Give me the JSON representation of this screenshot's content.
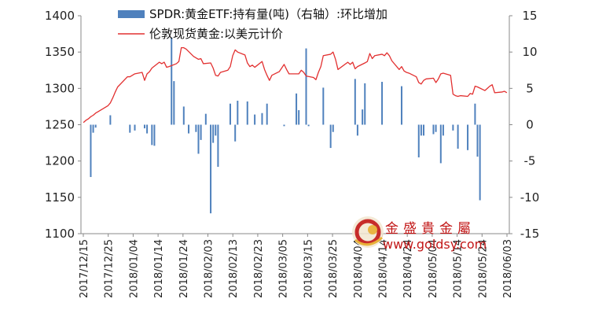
{
  "chart_data": {
    "type": "bar+line",
    "title": "",
    "legend": {
      "placement": "top-center",
      "entries": [
        {
          "name": "SPDR:黄金ETF:持有量(吨)（右轴）:环比增加",
          "kind": "bar",
          "color": "#4f81bd"
        },
        {
          "name": "伦敦现货黄金:以美元计价",
          "kind": "line",
          "color": "#e23030"
        }
      ]
    },
    "left_axis": {
      "min": 1100,
      "max": 1400,
      "step": 50,
      "ticks": [
        "1400",
        "1350",
        "1300",
        "1250",
        "1200",
        "1150",
        "1100"
      ]
    },
    "right_axis": {
      "min": -15,
      "max": 15,
      "step": 5,
      "ticks": [
        "15",
        "10",
        "5",
        "0",
        "-5",
        "-10",
        "-15"
      ]
    },
    "x_tick_labels": [
      "2017/12/15",
      "2017/12/25",
      "2018/01/04",
      "2018/01/14",
      "2018/01/24",
      "2018/02/03",
      "2018/02/13",
      "2018/02/23",
      "2018/03/05",
      "2018/03/15",
      "2018/03/25",
      "2018/04/04",
      "2018/04/14",
      "2018/04/24",
      "2018/05/04",
      "2018/05/14",
      "2018/05/24",
      "2018/06/03"
    ],
    "series": [
      {
        "name": "SPDR:黄金ETF:持有量(吨)（右轴）:环比增加",
        "type": "bar",
        "axis": "right",
        "color": "#4f81bd",
        "points": [
          [
            "2017/12/18",
            -7.2
          ],
          [
            "2017/12/19",
            -1.1
          ],
          [
            "2017/12/20",
            -0.4
          ],
          [
            "2017/12/26",
            1.3
          ],
          [
            "2018/01/03",
            -1.1
          ],
          [
            "2018/01/05",
            -0.8
          ],
          [
            "2018/01/09",
            -0.5
          ],
          [
            "2018/01/10",
            -1.2
          ],
          [
            "2018/01/12",
            -2.8
          ],
          [
            "2018/01/13",
            -2.9
          ],
          [
            "2018/01/20",
            12.0
          ],
          [
            "2018/01/21",
            6.0
          ],
          [
            "2018/01/25",
            2.5
          ],
          [
            "2018/01/27",
            -1.2
          ],
          [
            "2018/01/30",
            -1.0
          ],
          [
            "2018/01/31",
            -4.0
          ],
          [
            "2018/02/01",
            -2.1
          ],
          [
            "2018/02/03",
            1.5
          ],
          [
            "2018/02/05",
            -12.2
          ],
          [
            "2018/02/06",
            -2.5
          ],
          [
            "2018/02/07",
            -1.5
          ],
          [
            "2018/02/08",
            -5.8
          ],
          [
            "2018/02/13",
            2.9
          ],
          [
            "2018/02/15",
            -2.3
          ],
          [
            "2018/02/16",
            3.3
          ],
          [
            "2018/02/20",
            3.2
          ],
          [
            "2018/02/23",
            1.4
          ],
          [
            "2018/02/26",
            1.6
          ],
          [
            "2018/02/28",
            2.9
          ],
          [
            "2018/03/07",
            -0.2
          ],
          [
            "2018/03/12",
            4.3
          ],
          [
            "2018/03/13",
            2.0
          ],
          [
            "2018/03/16",
            10.5
          ],
          [
            "2018/03/17",
            -0.2
          ],
          [
            "2018/03/23",
            5.1
          ],
          [
            "2018/03/26",
            -3.2
          ],
          [
            "2018/03/27",
            -1.0
          ],
          [
            "2018/04/05",
            6.3
          ],
          [
            "2018/04/06",
            -1.5
          ],
          [
            "2018/04/08",
            2.1
          ],
          [
            "2018/04/09",
            5.7
          ],
          [
            "2018/04/16",
            5.9
          ],
          [
            "2018/04/24",
            5.3
          ],
          [
            "2018/05/01",
            -4.5
          ],
          [
            "2018/05/02",
            -1.5
          ],
          [
            "2018/05/03",
            -1.5
          ],
          [
            "2018/05/07",
            -1.3
          ],
          [
            "2018/05/08",
            -1.0
          ],
          [
            "2018/05/10",
            -5.3
          ],
          [
            "2018/05/11",
            -1.5
          ],
          [
            "2018/05/15",
            -0.8
          ],
          [
            "2018/05/17",
            -3.3
          ],
          [
            "2018/05/21",
            -3.5
          ],
          [
            "2018/05/24",
            2.9
          ],
          [
            "2018/05/25",
            -4.4
          ],
          [
            "2018/05/26",
            -10.4
          ]
        ]
      },
      {
        "name": "伦敦现货黄金:以美元计价",
        "type": "line",
        "axis": "left",
        "color": "#e23030",
        "points": [
          [
            "2017/12/15",
            1253
          ],
          [
            "2017/12/16",
            1256
          ],
          [
            "2017/12/17",
            1258
          ],
          [
            "2017/12/18",
            1261
          ],
          [
            "2017/12/19",
            1263
          ],
          [
            "2017/12/20",
            1266
          ],
          [
            "2017/12/21",
            1268
          ],
          [
            "2017/12/22",
            1270
          ],
          [
            "2017/12/25",
            1276
          ],
          [
            "2017/12/26",
            1280
          ],
          [
            "2017/12/27",
            1287
          ],
          [
            "2017/12/28",
            1295
          ],
          [
            "2017/12/29",
            1302
          ],
          [
            "2018/01/02",
            1316
          ],
          [
            "2018/01/03",
            1316
          ],
          [
            "2018/01/04",
            1318
          ],
          [
            "2018/01/05",
            1320
          ],
          [
            "2018/01/08",
            1322
          ],
          [
            "2018/01/09",
            1311
          ],
          [
            "2018/01/10",
            1320
          ],
          [
            "2018/01/11",
            1323
          ],
          [
            "2018/01/12",
            1328
          ],
          [
            "2018/01/15",
            1336
          ],
          [
            "2018/01/16",
            1334
          ],
          [
            "2018/01/17",
            1336
          ],
          [
            "2018/01/18",
            1329
          ],
          [
            "2018/01/19",
            1330
          ],
          [
            "2018/01/22",
            1334
          ],
          [
            "2018/01/23",
            1337
          ],
          [
            "2018/01/24",
            1356
          ],
          [
            "2018/01/25",
            1356
          ],
          [
            "2018/01/26",
            1354
          ],
          [
            "2018/01/29",
            1344
          ],
          [
            "2018/01/30",
            1342
          ],
          [
            "2018/01/31",
            1340
          ],
          [
            "2018/02/01",
            1341
          ],
          [
            "2018/02/02",
            1334
          ],
          [
            "2018/02/05",
            1335
          ],
          [
            "2018/02/06",
            1328
          ],
          [
            "2018/02/07",
            1318
          ],
          [
            "2018/02/08",
            1317
          ],
          [
            "2018/02/09",
            1322
          ],
          [
            "2018/02/12",
            1325
          ],
          [
            "2018/02/13",
            1330
          ],
          [
            "2018/02/14",
            1345
          ],
          [
            "2018/02/15",
            1353
          ],
          [
            "2018/02/16",
            1350
          ],
          [
            "2018/02/19",
            1346
          ],
          [
            "2018/02/20",
            1335
          ],
          [
            "2018/02/21",
            1330
          ],
          [
            "2018/02/22",
            1332
          ],
          [
            "2018/02/23",
            1329
          ],
          [
            "2018/02/26",
            1337
          ],
          [
            "2018/02/27",
            1326
          ],
          [
            "2018/02/28",
            1318
          ],
          [
            "2018/03/01",
            1311
          ],
          [
            "2018/03/02",
            1318
          ],
          [
            "2018/03/05",
            1323
          ],
          [
            "2018/03/06",
            1328
          ],
          [
            "2018/03/07",
            1333
          ],
          [
            "2018/03/08",
            1326
          ],
          [
            "2018/03/09",
            1320
          ],
          [
            "2018/03/12",
            1320
          ],
          [
            "2018/03/13",
            1320
          ],
          [
            "2018/03/14",
            1325
          ],
          [
            "2018/03/15",
            1322
          ],
          [
            "2018/03/16",
            1317
          ],
          [
            "2018/03/19",
            1315
          ],
          [
            "2018/03/20",
            1312
          ],
          [
            "2018/03/21",
            1322
          ],
          [
            "2018/03/22",
            1330
          ],
          [
            "2018/03/23",
            1345
          ],
          [
            "2018/03/26",
            1347
          ],
          [
            "2018/03/27",
            1350
          ],
          [
            "2018/03/28",
            1340
          ],
          [
            "2018/03/29",
            1326
          ],
          [
            "2018/04/02",
            1336
          ],
          [
            "2018/04/03",
            1333
          ],
          [
            "2018/04/04",
            1336
          ],
          [
            "2018/04/05",
            1327
          ],
          [
            "2018/04/06",
            1330
          ],
          [
            "2018/04/09",
            1335
          ],
          [
            "2018/04/10",
            1337
          ],
          [
            "2018/04/11",
            1348
          ],
          [
            "2018/04/12",
            1341
          ],
          [
            "2018/04/13",
            1345
          ],
          [
            "2018/04/16",
            1347
          ],
          [
            "2018/04/17",
            1345
          ],
          [
            "2018/04/18",
            1349
          ],
          [
            "2018/04/19",
            1345
          ],
          [
            "2018/04/20",
            1338
          ],
          [
            "2018/04/23",
            1326
          ],
          [
            "2018/04/24",
            1330
          ],
          [
            "2018/04/25",
            1324
          ],
          [
            "2018/04/26",
            1322
          ],
          [
            "2018/04/27",
            1321
          ],
          [
            "2018/04/30",
            1316
          ],
          [
            "2018/05/01",
            1308
          ],
          [
            "2018/05/02",
            1306
          ],
          [
            "2018/05/03",
            1311
          ],
          [
            "2018/05/04",
            1313
          ],
          [
            "2018/05/07",
            1314
          ],
          [
            "2018/05/08",
            1308
          ],
          [
            "2018/05/09",
            1313
          ],
          [
            "2018/05/10",
            1320
          ],
          [
            "2018/05/11",
            1321
          ],
          [
            "2018/05/14",
            1318
          ],
          [
            "2018/05/15",
            1292
          ],
          [
            "2018/05/16",
            1290
          ],
          [
            "2018/05/17",
            1289
          ],
          [
            "2018/05/18",
            1290
          ],
          [
            "2018/05/21",
            1289
          ],
          [
            "2018/05/22",
            1293
          ],
          [
            "2018/05/23",
            1292
          ],
          [
            "2018/05/24",
            1303
          ],
          [
            "2018/05/25",
            1302
          ],
          [
            "2018/05/28",
            1297
          ],
          [
            "2018/05/29",
            1300
          ],
          [
            "2018/05/30",
            1303
          ],
          [
            "2018/05/31",
            1305
          ],
          [
            "2018/06/01",
            1294
          ],
          [
            "2018/06/04",
            1295
          ],
          [
            "2018/06/05",
            1296
          ],
          [
            "2018/06/06",
            1294
          ]
        ]
      }
    ]
  },
  "watermark": {
    "chinese": "金盛貴金屬",
    "url": "www.goldsy.com"
  }
}
